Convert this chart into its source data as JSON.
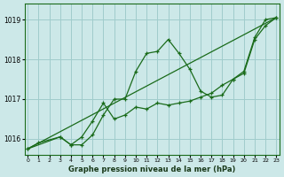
{
  "title": "Graphe pression niveau de la mer (hPa)",
  "bg_color": "#cce8e8",
  "grid_color": "#a0cccc",
  "line_color": "#1a6b1a",
  "xlim": [
    -0.3,
    23.3
  ],
  "ylim": [
    1015.6,
    1019.4
  ],
  "yticks": [
    1016,
    1017,
    1018,
    1019
  ],
  "xticks": [
    0,
    1,
    2,
    3,
    4,
    5,
    6,
    7,
    8,
    9,
    10,
    11,
    12,
    13,
    14,
    15,
    16,
    17,
    18,
    19,
    20,
    21,
    22,
    23
  ],
  "s1_x": [
    0,
    1,
    3,
    4,
    5,
    6,
    7,
    8,
    9,
    10,
    11,
    12,
    13,
    14,
    15,
    16,
    17,
    18,
    19,
    20,
    21,
    22,
    23
  ],
  "s1_y": [
    1015.75,
    1015.9,
    1016.05,
    1015.85,
    1015.85,
    1016.1,
    1016.6,
    1017.0,
    1017.0,
    1017.7,
    1018.15,
    1018.2,
    1018.5,
    1018.15,
    1017.75,
    1017.2,
    1017.05,
    1017.1,
    1017.5,
    1017.7,
    1018.55,
    1019.0,
    1019.05
  ],
  "s2_x": [
    0,
    3,
    4,
    5,
    6,
    7,
    8,
    9,
    10,
    11,
    12,
    13,
    14,
    15,
    16,
    17,
    18,
    19,
    20,
    21,
    22,
    23
  ],
  "s2_y": [
    1015.75,
    1016.05,
    1015.85,
    1016.05,
    1016.45,
    1016.9,
    1016.5,
    1016.6,
    1016.8,
    1016.75,
    1016.9,
    1016.85,
    1016.9,
    1016.95,
    1017.05,
    1017.15,
    1017.35,
    1017.5,
    1017.65,
    1018.5,
    1018.85,
    1019.05
  ],
  "trend_x": [
    0,
    23
  ],
  "trend_y": [
    1015.75,
    1019.05
  ]
}
